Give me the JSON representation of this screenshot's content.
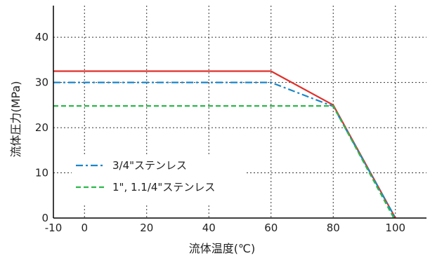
{
  "chart_data": {
    "type": "line",
    "xlabel": "流体温度(℃)",
    "ylabel": "流体圧力(MPa)",
    "xlim": [
      -10,
      110
    ],
    "ylim": [
      0,
      47
    ],
    "xticks": [
      -10,
      0,
      20,
      40,
      60,
      80,
      100
    ],
    "yticks": [
      0,
      10,
      20,
      30,
      40
    ],
    "grid": true,
    "legend_position": "lower-left",
    "series": [
      {
        "name": "",
        "color": "#e0302a",
        "dash": "solid",
        "x": [
          -10,
          60,
          80,
          100
        ],
        "y": [
          32.5,
          32.5,
          25,
          0
        ]
      },
      {
        "name": "3/4\"ステンレス",
        "color": "#1a86c8",
        "dash": "dashdot",
        "x": [
          -10,
          60,
          80,
          100
        ],
        "y": [
          30,
          30,
          24.7,
          0
        ]
      },
      {
        "name": "1\", 1.1/4\"ステンレス",
        "color": "#2db84a",
        "dash": "dashed",
        "x": [
          -10,
          60,
          80,
          99.5
        ],
        "y": [
          24.8,
          24.8,
          24.8,
          0
        ]
      }
    ]
  }
}
